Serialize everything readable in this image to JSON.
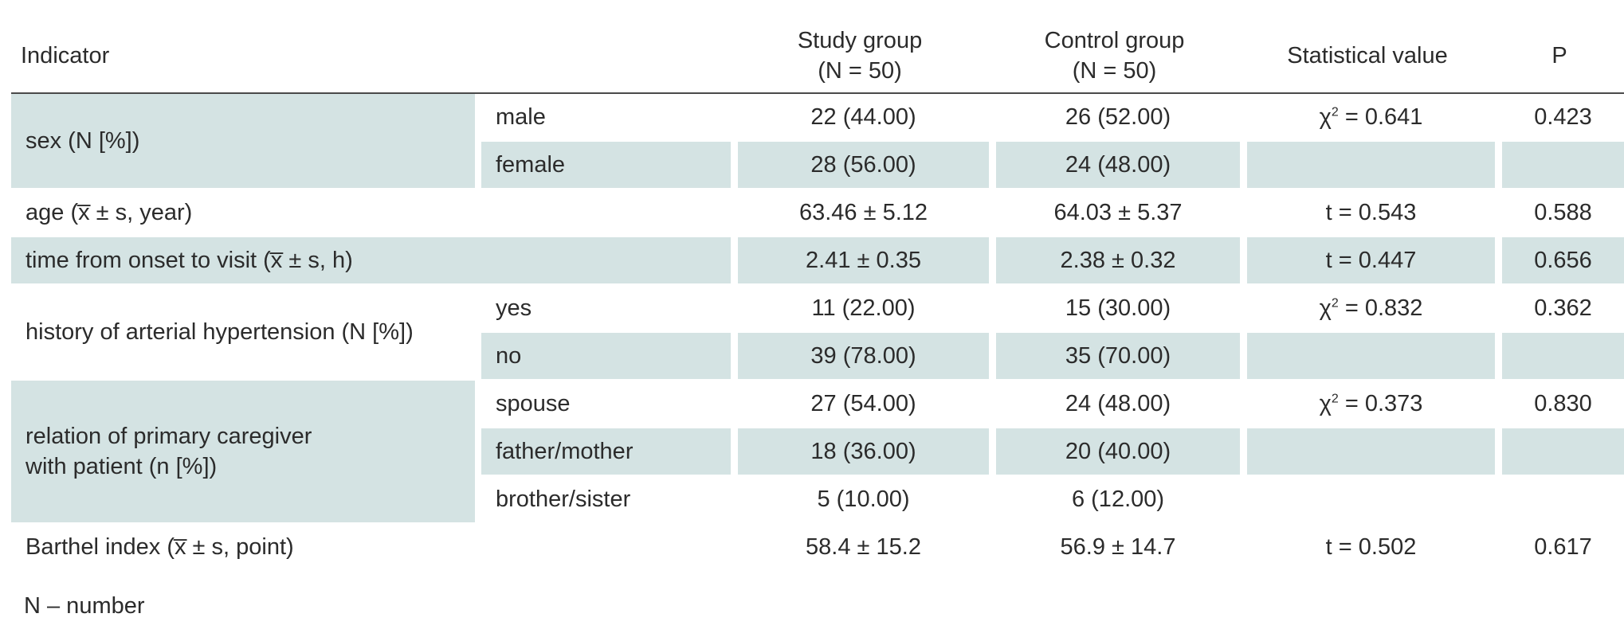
{
  "table": {
    "headers": {
      "indicator": "Indicator",
      "study_line1": "Study group",
      "study_line2": "(N = 50)",
      "control_line1": "Control group",
      "control_line2": "(N = 50)",
      "statistical": "Statistical value",
      "p": "P"
    },
    "sex": {
      "label": "sex (N [%])",
      "male": {
        "sub": "male",
        "study": "22 (44.00)",
        "control": "26 (52.00)",
        "stat_sym": "χ",
        "stat_sup": "2",
        "stat_val": " = 0.641",
        "p": "0.423"
      },
      "female": {
        "sub": "female",
        "study": "28 (56.00)",
        "control": "24 (48.00)"
      }
    },
    "age": {
      "label": "age (x̅ ± s, year)",
      "study": "63.46 ± 5.12",
      "control": "64.03 ± 5.37",
      "stat": "t = 0.543",
      "p": "0.588"
    },
    "onset": {
      "label": "time from onset to visit (x̅ ± s, h)",
      "study": "2.41 ± 0.35",
      "control": "2.38 ± 0.32",
      "stat": "t = 0.447",
      "p": "0.656"
    },
    "hypertension": {
      "label": "history of arterial hypertension (N [%])",
      "yes": {
        "sub": "yes",
        "study": "11 (22.00)",
        "control": "15 (30.00)",
        "stat_sym": "χ",
        "stat_sup": "2",
        "stat_val": " = 0.832",
        "p": "0.362"
      },
      "no": {
        "sub": "no",
        "study": "39 (78.00)",
        "control": "35 (70.00)"
      }
    },
    "caregiver": {
      "label_line1": "relation of primary caregiver",
      "label_line2": "with patient (n [%])",
      "spouse": {
        "sub": "spouse",
        "study": "27 (54.00)",
        "control": "24 (48.00)",
        "stat_sym": "χ",
        "stat_sup": "2",
        "stat_val": " = 0.373",
        "p": "0.830"
      },
      "parent": {
        "sub": "father/mother",
        "study": "18 (36.00)",
        "control": "20 (40.00)"
      },
      "sibling": {
        "sub": "brother/sister",
        "study": "5 (10.00)",
        "control": "6 (12.00)"
      }
    },
    "barthel": {
      "label": "Barthel index (x̅ ± s, point)",
      "study": "58.4 ± 15.2",
      "control": "56.9 ± 14.7",
      "stat": "t = 0.502",
      "p": "0.617"
    }
  },
  "footnote": "N – number",
  "colors": {
    "row_shade": "#d4e3e3",
    "text": "#2b2b2b",
    "rule": "#4a4a4a"
  }
}
